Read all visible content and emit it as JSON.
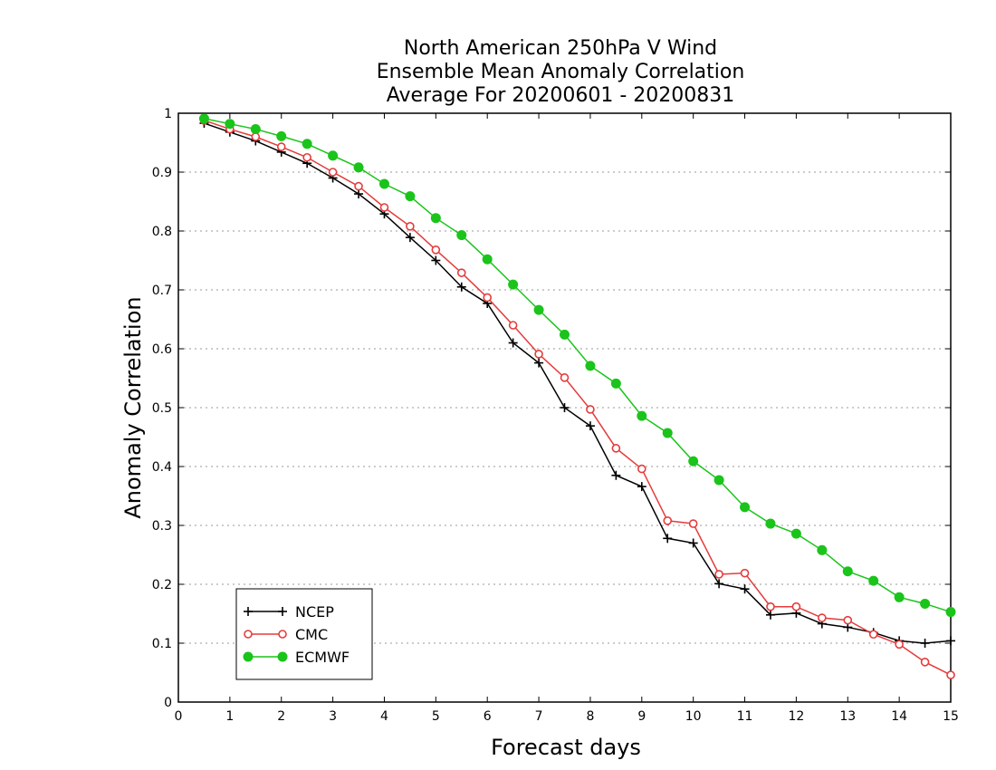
{
  "chart_data": {
    "type": "line",
    "title_lines": [
      "North American 250hPa V Wind",
      "Ensemble Mean Anomaly Correlation",
      "Average For 20200601 - 20200831"
    ],
    "xlabel": "Forecast days",
    "ylabel": "Anomaly Correlation",
    "xlim": [
      0,
      15
    ],
    "ylim": [
      0,
      1
    ],
    "x_ticks": [
      "0",
      "1",
      "2",
      "3",
      "4",
      "5",
      "6",
      "7",
      "8",
      "9",
      "10",
      "11",
      "12",
      "13",
      "14",
      "15"
    ],
    "y_ticks": [
      "0",
      "0.1",
      "0.2",
      "0.3",
      "0.4",
      "0.5",
      "0.6",
      "0.7",
      "0.8",
      "0.9",
      "1"
    ],
    "grid": "dotted horizontal",
    "legend_position": "bottom-left",
    "x": [
      0.5,
      1,
      1.5,
      2,
      2.5,
      3,
      3.5,
      4,
      4.5,
      5,
      5.5,
      6,
      6.5,
      7,
      7.5,
      8,
      8.5,
      9,
      9.5,
      10,
      10.5,
      11,
      11.5,
      12,
      12.5,
      13,
      13.5,
      14,
      14.5,
      15
    ],
    "series": [
      {
        "name": "NCEP",
        "color": "#000000",
        "marker": "plus",
        "values": [
          0.983,
          0.968,
          0.953,
          0.934,
          0.915,
          0.89,
          0.863,
          0.829,
          0.789,
          0.75,
          0.705,
          0.677,
          0.61,
          0.576,
          0.5,
          0.469,
          0.385,
          0.366,
          0.278,
          0.27,
          0.201,
          0.192,
          0.148,
          0.151,
          0.133,
          0.127,
          0.118,
          0.104,
          0.1,
          0.104
        ]
      },
      {
        "name": "CMC",
        "color": "#e53b3b",
        "marker": "open-circle",
        "values": [
          0.988,
          0.973,
          0.96,
          0.943,
          0.925,
          0.9,
          0.876,
          0.84,
          0.808,
          0.768,
          0.729,
          0.687,
          0.64,
          0.591,
          0.551,
          0.497,
          0.431,
          0.396,
          0.308,
          0.303,
          0.217,
          0.219,
          0.162,
          0.162,
          0.143,
          0.139,
          0.115,
          0.098,
          0.068,
          0.046
        ]
      },
      {
        "name": "ECMWF",
        "color": "#1ac41a",
        "marker": "filled-circle",
        "values": [
          0.991,
          0.982,
          0.973,
          0.961,
          0.948,
          0.928,
          0.908,
          0.88,
          0.859,
          0.822,
          0.793,
          0.752,
          0.709,
          0.666,
          0.624,
          0.571,
          0.541,
          0.486,
          0.457,
          0.409,
          0.377,
          0.331,
          0.303,
          0.286,
          0.258,
          0.222,
          0.206,
          0.178,
          0.167,
          0.153
        ]
      }
    ]
  }
}
